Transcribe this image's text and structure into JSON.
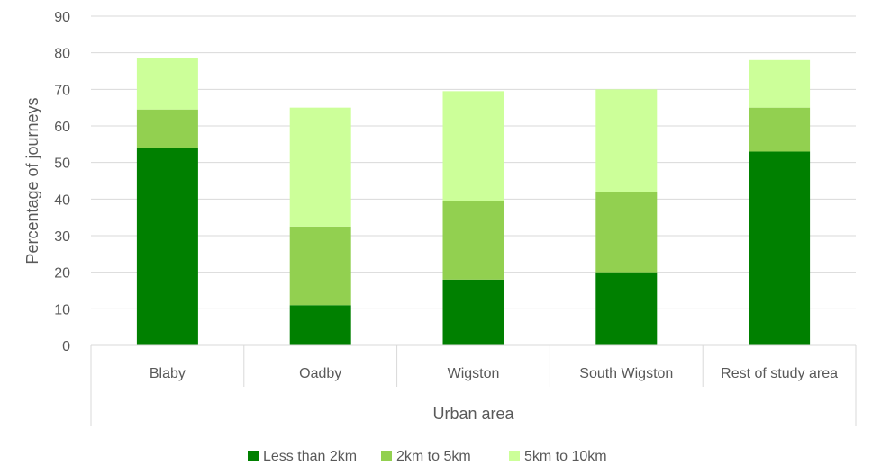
{
  "chart_data": {
    "type": "bar",
    "stacked": true,
    "categories": [
      "Blaby",
      "Oadby",
      "Wigston",
      "South Wigston",
      "Rest of study area"
    ],
    "series": [
      {
        "name": "Less than 2km",
        "color": "#008000",
        "values": [
          54,
          11,
          18,
          20,
          53
        ]
      },
      {
        "name": "2km to 5km",
        "color": "#92D050",
        "values": [
          10.5,
          21.5,
          21.5,
          22,
          12
        ]
      },
      {
        "name": "5km to 10km",
        "color": "#CCFF99",
        "values": [
          14,
          32.5,
          30,
          28,
          13
        ]
      }
    ],
    "xlabel": "Urban area",
    "ylabel": "Percentage of journeys",
    "ylim": [
      0,
      90
    ],
    "yticks": [
      0,
      10,
      20,
      30,
      40,
      50,
      60,
      70,
      80,
      90
    ],
    "grid": true,
    "legend_position": "bottom"
  }
}
